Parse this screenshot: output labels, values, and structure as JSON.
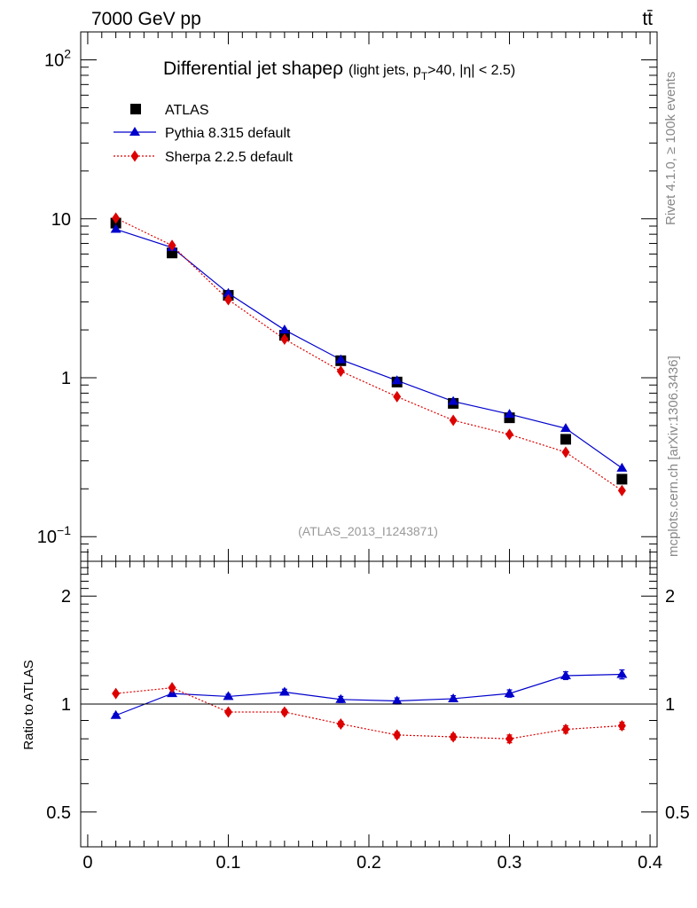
{
  "header": {
    "energy_label": "7000 GeV pp",
    "process_label": "tt̄"
  },
  "side_labels": {
    "rivet": "Rivet 4.1.0, ≥ 100k events",
    "mcplots": "mcplots.cern.ch [arXiv:1306.3436]"
  },
  "colors": {
    "data": "#000000",
    "pythia": "#0000cc",
    "sherpa": "#dd0000",
    "watermark": "#999999"
  },
  "chart_data": [
    {
      "type": "line",
      "panel": "main",
      "title_main": "Differential jet shape",
      "title_symbol": "ρ",
      "title_cond_a": "(light jets, p",
      "title_cond_sub": "T",
      "title_cond_b": ">40, |η| < 2.5)",
      "analysis_id": "(ATLAS_2013_I1243871)",
      "yscale": "log",
      "ylim": [
        0.07,
        150
      ],
      "xlim": [
        -0.005,
        0.405
      ],
      "ytick_labels": [
        {
          "v": 100,
          "base": "10",
          "exp": "2"
        },
        {
          "v": 10,
          "base": "10",
          "exp": ""
        },
        {
          "v": 1,
          "base": "1",
          "exp": ""
        },
        {
          "v": 0.1,
          "base": "10",
          "exp": "−1"
        }
      ],
      "x": [
        0.02,
        0.06,
        0.1,
        0.14,
        0.18,
        0.22,
        0.26,
        0.3,
        0.34,
        0.38
      ],
      "series": [
        {
          "name": "ATLAS",
          "style": "data",
          "values": [
            9.4,
            6.1,
            3.3,
            1.85,
            1.28,
            0.94,
            0.69,
            0.56,
            0.41,
            0.23
          ]
        },
        {
          "name": "Pythia 8.315 default",
          "style": "pythia",
          "values": [
            8.6,
            6.6,
            3.4,
            2.0,
            1.3,
            0.96,
            0.71,
            0.59,
            0.48,
            0.27
          ]
        },
        {
          "name": "Sherpa 2.2.5 default",
          "style": "sherpa",
          "values": [
            10.1,
            6.8,
            3.1,
            1.75,
            1.1,
            0.76,
            0.54,
            0.44,
            0.34,
            0.195
          ]
        }
      ]
    },
    {
      "type": "line",
      "panel": "ratio",
      "ylabel": "Ratio to ATLAS",
      "yscale": "log",
      "ylim": [
        0.4,
        2.5
      ],
      "xlim": [
        -0.005,
        0.405
      ],
      "ytick_labels": [
        {
          "v": 2,
          "label": "2"
        },
        {
          "v": 1,
          "label": "1"
        },
        {
          "v": 0.5,
          "label": "0.5"
        }
      ],
      "xtick_labels": [
        {
          "v": 0,
          "label": "0"
        },
        {
          "v": 0.1,
          "label": "0.1"
        },
        {
          "v": 0.2,
          "label": "0.2"
        },
        {
          "v": 0.3,
          "label": "0.3"
        },
        {
          "v": 0.4,
          "label": "0.4"
        }
      ],
      "x": [
        0.02,
        0.06,
        0.1,
        0.14,
        0.18,
        0.22,
        0.26,
        0.3,
        0.34,
        0.38
      ],
      "series": [
        {
          "name": "Pythia 8.315 default",
          "style": "pythia",
          "values": [
            0.93,
            1.07,
            1.05,
            1.08,
            1.03,
            1.02,
            1.035,
            1.07,
            1.2,
            1.21
          ],
          "errors": [
            0.01,
            0.01,
            0.015,
            0.02,
            0.02,
            0.02,
            0.02,
            0.025,
            0.03,
            0.035
          ]
        },
        {
          "name": "Sherpa 2.2.5 default",
          "style": "sherpa",
          "values": [
            1.07,
            1.11,
            0.95,
            0.95,
            0.88,
            0.82,
            0.81,
            0.8,
            0.85,
            0.87
          ],
          "errors": [
            0.008,
            0.01,
            0.012,
            0.015,
            0.015,
            0.015,
            0.015,
            0.02,
            0.02,
            0.02
          ]
        }
      ]
    }
  ]
}
